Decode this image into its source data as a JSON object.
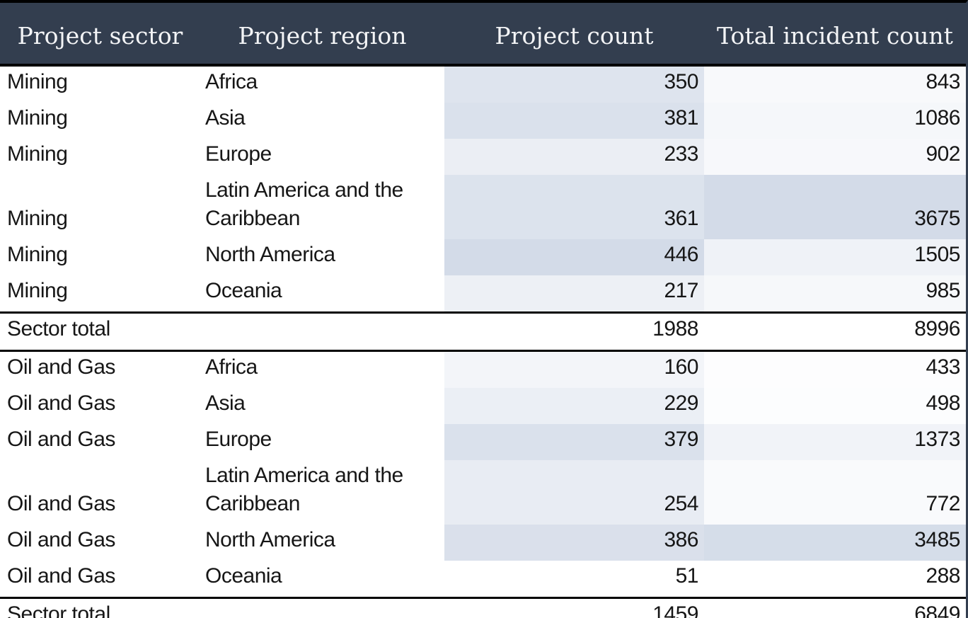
{
  "chart_data": {
    "type": "table",
    "columns": [
      "Project sector",
      "Project region",
      "Project count",
      "Total incident count"
    ],
    "sections": [
      {
        "sector": "Mining",
        "rows": [
          {
            "sector": "Mining",
            "region": "Africa",
            "project_count": 350,
            "incident_count": 843
          },
          {
            "sector": "Mining",
            "region": "Asia",
            "project_count": 381,
            "incident_count": 1086
          },
          {
            "sector": "Mining",
            "region": "Europe",
            "project_count": 233,
            "incident_count": 902
          },
          {
            "sector": "Mining",
            "region": "Latin America and the Caribbean",
            "project_count": 361,
            "incident_count": 3675
          },
          {
            "sector": "Mining",
            "region": "North America",
            "project_count": 446,
            "incident_count": 1505
          },
          {
            "sector": "Mining",
            "region": "Oceania",
            "project_count": 217,
            "incident_count": 985
          }
        ],
        "total": {
          "label": "Sector total",
          "project_count": 1988,
          "incident_count": 8996
        }
      },
      {
        "sector": "Oil and Gas",
        "rows": [
          {
            "sector": "Oil and Gas",
            "region": "Africa",
            "project_count": 160,
            "incident_count": 433
          },
          {
            "sector": "Oil and Gas",
            "region": "Asia",
            "project_count": 229,
            "incident_count": 498
          },
          {
            "sector": "Oil and Gas",
            "region": "Europe",
            "project_count": 379,
            "incident_count": 1373
          },
          {
            "sector": "Oil and Gas",
            "region": "Latin America and the Caribbean",
            "project_count": 254,
            "incident_count": 772
          },
          {
            "sector": "Oil and Gas",
            "region": "North America",
            "project_count": 386,
            "incident_count": 3485
          },
          {
            "sector": "Oil and Gas",
            "region": "Oceania",
            "project_count": 51,
            "incident_count": 288
          }
        ],
        "total": {
          "label": "Sector total",
          "project_count": 1459,
          "incident_count": 6849
        }
      }
    ],
    "heatmap": {
      "min_color": "#ffffff",
      "max_color": "#d3dbe8",
      "project_count_range": [
        51,
        446
      ],
      "incident_count_range": [
        288,
        3675
      ]
    },
    "colors": {
      "header_bg": "#333e4f",
      "header_text": "#f3f4f6",
      "body_text": "#161616",
      "rule": "#000000",
      "right_border": "#333e4f"
    }
  }
}
